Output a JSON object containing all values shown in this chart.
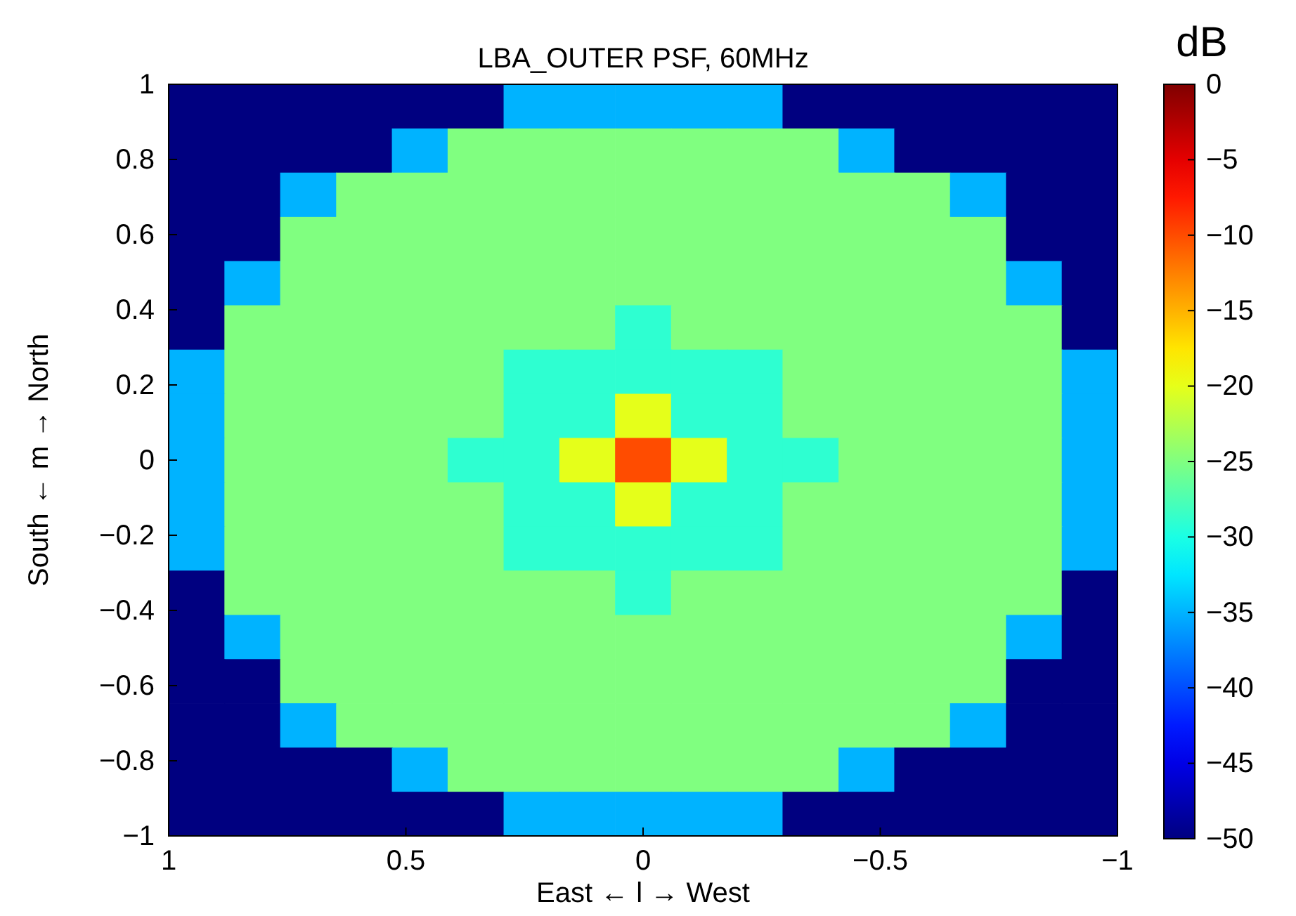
{
  "chart_data": {
    "type": "heatmap",
    "title": "LBA_OUTER PSF, 60MHz",
    "xlabel": "East ← l → West",
    "ylabel": "South ← m → North",
    "clabel": "dB",
    "x": [
      0.941,
      0.824,
      0.706,
      0.588,
      0.471,
      0.353,
      0.235,
      0.118,
      0,
      -0.118,
      -0.235,
      -0.353,
      -0.471,
      -0.588,
      -0.706,
      -0.824,
      -0.941
    ],
    "y": [
      0.941,
      0.824,
      0.706,
      0.588,
      0.471,
      0.353,
      0.235,
      0.118,
      0,
      -0.118,
      -0.235,
      -0.353,
      -0.471,
      -0.588,
      -0.706,
      -0.824,
      -0.941
    ],
    "xlim": [
      1,
      -1
    ],
    "xticks": [
      1,
      0.5,
      0,
      {
        "value": -0.5,
        "label": "−0.5"
      },
      {
        "value": -1,
        "label": "−1"
      }
    ],
    "ylim": [
      -1,
      1
    ],
    "yticks": [
      {
        "value": -1,
        "label": "−1"
      },
      {
        "value": -0.8,
        "label": "−0.8"
      },
      {
        "value": -0.6,
        "label": "−0.6"
      },
      {
        "value": -0.4,
        "label": "−0.4"
      },
      {
        "value": -0.2,
        "label": "−0.2"
      },
      0,
      0.2,
      0.4,
      0.6,
      0.8,
      1
    ],
    "clim": [
      -50,
      0
    ],
    "cticks": [
      {
        "value": -50,
        "label": "−50"
      },
      {
        "value": -45,
        "label": "−45"
      },
      {
        "value": -40,
        "label": "−40"
      },
      {
        "value": -35,
        "label": "−35"
      },
      {
        "value": -30,
        "label": "−30"
      },
      {
        "value": -25,
        "label": "−25"
      },
      {
        "value": -20,
        "label": "−20"
      },
      {
        "value": -15,
        "label": "−15"
      },
      {
        "value": -10,
        "label": "−10"
      },
      {
        "value": -5,
        "label": "−5"
      },
      0
    ],
    "grid": false,
    "cells": [
      [
        -50,
        -50,
        -50,
        -50,
        -50,
        -50,
        -35,
        -35,
        -35,
        -35,
        -35,
        -50,
        -50,
        -50,
        -50,
        -50,
        -50
      ],
      [
        -50,
        -50,
        -50,
        -50,
        -35,
        -25,
        -25,
        -25,
        -25,
        -25,
        -25,
        -25,
        -35,
        -50,
        -50,
        -50,
        -50
      ],
      [
        -50,
        -50,
        -35,
        -25,
        -25,
        -25,
        -25,
        -25,
        -25,
        -25,
        -25,
        -25,
        -25,
        -25,
        -35,
        -50,
        -50
      ],
      [
        -50,
        -50,
        -25,
        -25,
        -25,
        -25,
        -25,
        -25,
        -25,
        -25,
        -25,
        -25,
        -25,
        -25,
        -25,
        -50,
        -50
      ],
      [
        -50,
        -35,
        -25,
        -25,
        -25,
        -25,
        -25,
        -25,
        -25,
        -25,
        -25,
        -25,
        -25,
        -25,
        -25,
        -35,
        -50
      ],
      [
        -50,
        -25,
        -25,
        -25,
        -25,
        -25,
        -25,
        -25,
        -29,
        -25,
        -25,
        -25,
        -25,
        -25,
        -25,
        -25,
        -50
      ],
      [
        -35,
        -25,
        -25,
        -25,
        -25,
        -25,
        -29,
        -29,
        -29,
        -29,
        -29,
        -25,
        -25,
        -25,
        -25,
        -25,
        -35
      ],
      [
        -35,
        -25,
        -25,
        -25,
        -25,
        -25,
        -29,
        -29,
        -20,
        -29,
        -29,
        -25,
        -25,
        -25,
        -25,
        -25,
        -35
      ],
      [
        -35,
        -25,
        -25,
        -25,
        -25,
        -29,
        -29,
        -20,
        -10,
        -20,
        -29,
        -29,
        -25,
        -25,
        -25,
        -25,
        -35
      ],
      [
        -35,
        -25,
        -25,
        -25,
        -25,
        -25,
        -29,
        -29,
        -20,
        -29,
        -29,
        -25,
        -25,
        -25,
        -25,
        -25,
        -35
      ],
      [
        -35,
        -25,
        -25,
        -25,
        -25,
        -25,
        -29,
        -29,
        -29,
        -29,
        -29,
        -25,
        -25,
        -25,
        -25,
        -25,
        -35
      ],
      [
        -50,
        -25,
        -25,
        -25,
        -25,
        -25,
        -25,
        -25,
        -29,
        -25,
        -25,
        -25,
        -25,
        -25,
        -25,
        -25,
        -50
      ],
      [
        -50,
        -35,
        -25,
        -25,
        -25,
        -25,
        -25,
        -25,
        -25,
        -25,
        -25,
        -25,
        -25,
        -25,
        -25,
        -35,
        -50
      ],
      [
        -50,
        -50,
        -25,
        -25,
        -25,
        -25,
        -25,
        -25,
        -25,
        -25,
        -25,
        -25,
        -25,
        -25,
        -25,
        -50,
        -50
      ],
      [
        -50,
        -50,
        -35,
        -25,
        -25,
        -25,
        -25,
        -25,
        -25,
        -25,
        -25,
        -25,
        -25,
        -25,
        -35,
        -50,
        -50
      ],
      [
        -50,
        -50,
        -50,
        -50,
        -35,
        -25,
        -25,
        -25,
        -25,
        -25,
        -25,
        -25,
        -35,
        -50,
        -50,
        -50,
        -50
      ],
      [
        -50,
        -50,
        -50,
        -50,
        -50,
        -50,
        -35,
        -35,
        -35,
        -35,
        -35,
        -50,
        -50,
        -50,
        -50,
        -50,
        -50
      ]
    ]
  }
}
